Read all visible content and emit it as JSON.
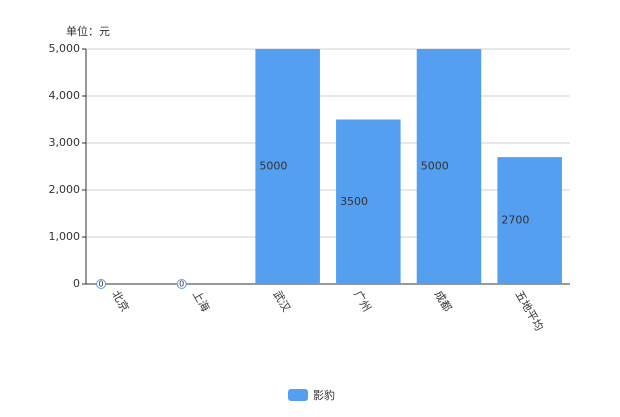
{
  "chart_data": {
    "type": "bar",
    "unit_label": "单位：元",
    "categories": [
      "北京",
      "上海",
      "武汉",
      "广州",
      "成都",
      "五地平均"
    ],
    "series": [
      {
        "name": "影豹",
        "color": "#559ff0",
        "values": [
          0,
          0,
          5000,
          3500,
          5000,
          2700
        ]
      }
    ],
    "ylim": [
      0,
      5000
    ],
    "yticks": [
      0,
      {
        "value": 1000,
        "label": "1,000"
      },
      {
        "value": 2000,
        "label": "2,000"
      },
      {
        "value": 3000,
        "label": "3,000"
      },
      {
        "value": 4000,
        "label": "4,000"
      },
      {
        "value": 5000,
        "label": "5,000"
      }
    ],
    "grid": true,
    "legend": "bottom"
  }
}
